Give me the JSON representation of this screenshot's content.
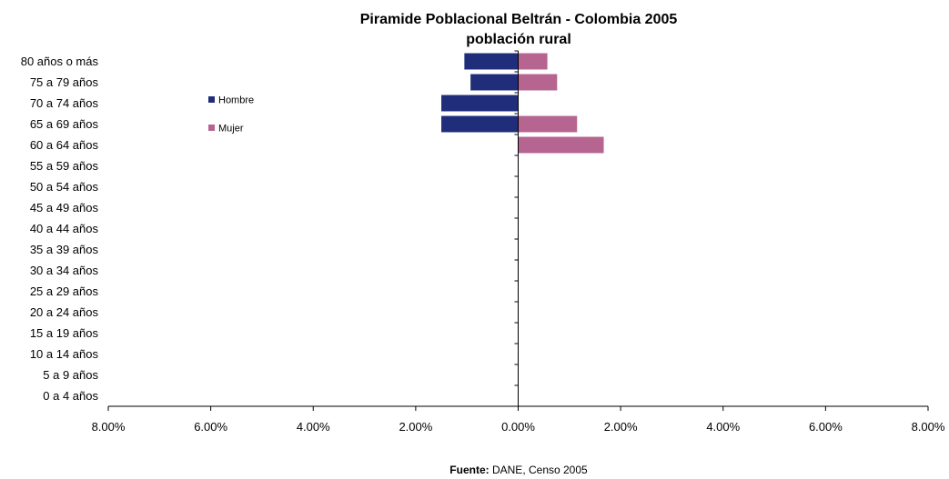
{
  "chart_data": {
    "type": "bar",
    "orientation": "horizontal-diverging",
    "title": "Piramide Poblacional Beltrán - Colombia 2005",
    "subtitle": "población rural",
    "categories": [
      "80 años o más",
      "75 a 79 años",
      "70 a 74 años",
      "65 a 69 años",
      "60 a 64 años",
      "55 a 59 años",
      "50 a 54 años",
      "45 a 49 años",
      "40 a 44 años",
      "35 a 39 años",
      "30 a 34 años",
      "25 a 29 años",
      "20 a 24 años",
      "15 a 19 años",
      "10 a 14 años",
      "5 a 9 años",
      "0 a 4 años"
    ],
    "series": [
      {
        "name": "Hombre",
        "color": "#1f2d7a",
        "values": [
          1.05,
          0.93,
          1.5,
          1.5,
          0.0,
          0.0,
          0.0,
          0.0,
          0.0,
          0.0,
          0.0,
          0.0,
          0.0,
          0.0,
          0.0,
          0.0,
          0.0
        ]
      },
      {
        "name": "Mujer",
        "color": "#b5658f",
        "values": [
          0.57,
          0.76,
          0.0,
          1.15,
          1.67,
          0.0,
          0.0,
          0.0,
          0.0,
          0.0,
          0.0,
          0.0,
          0.0,
          0.0,
          0.0,
          0.0,
          0.0
        ]
      }
    ],
    "xlim": [
      -8,
      8
    ],
    "x_ticks": [
      "8.00%",
      "6.00%",
      "4.00%",
      "2.00%",
      "0.00%",
      "2.00%",
      "4.00%",
      "6.00%",
      "8.00%"
    ],
    "x_tick_values": [
      -8,
      -6,
      -4,
      -2,
      0,
      2,
      4,
      6,
      8
    ],
    "xlabel": "",
    "ylabel": "",
    "grid": false,
    "legend_position": "upper-left"
  },
  "source": {
    "label": "Fuente:",
    "text": " DANE, Censo 2005"
  }
}
